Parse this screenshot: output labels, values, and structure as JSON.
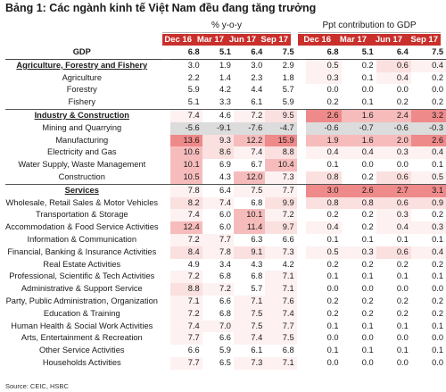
{
  "title": "Bảng 1: Các ngành kinh tế Việt Nam đều đang tăng trưởng",
  "groups": {
    "yoy": "% y-o-y",
    "ppt": "Ppt contribution to GDP"
  },
  "periods": [
    "Dec 16",
    "Mar 17",
    "Jun 17",
    "Sep 17"
  ],
  "colors": {
    "header_red": "#c9302c",
    "strong": "#ef8a8a",
    "medium": "#f6bcbc",
    "light": "#fbe0e0",
    "pale": "#fdf1f1",
    "neg": "#dcdcdc"
  },
  "rows": [
    {
      "label": "GDP",
      "type": "gdp",
      "yoy": [
        "6.8",
        "5.1",
        "6.4",
        "7.5"
      ],
      "ppt": [
        "6.8",
        "5.1",
        "6.4",
        "7.5"
      ]
    },
    {
      "label": "Agriculture, Forestry and Fishery",
      "type": "sector",
      "yoy": [
        "3.0",
        "1.9",
        "3.0",
        "2.9"
      ],
      "ppt": [
        "0.5",
        "0.2",
        "0.6",
        "0.4"
      ]
    },
    {
      "label": "Agriculture",
      "type": "item",
      "yoy": [
        "2.2",
        "1.4",
        "2.3",
        "1.8"
      ],
      "ppt": [
        "0.3",
        "0.1",
        "0.4",
        "0.2"
      ]
    },
    {
      "label": "Forestry",
      "type": "item",
      "yoy": [
        "5.9",
        "4.2",
        "4.4",
        "5.7"
      ],
      "ppt": [
        "0.0",
        "0.0",
        "0.0",
        "0.0"
      ]
    },
    {
      "label": "Fishery",
      "type": "item",
      "yoy": [
        "5.1",
        "3.3",
        "6.1",
        "5.9"
      ],
      "ppt": [
        "0.2",
        "0.1",
        "0.2",
        "0.2"
      ]
    },
    {
      "label": "Industry & Construction",
      "type": "sector",
      "yoy": [
        "7.4",
        "4.6",
        "7.2",
        "9.5"
      ],
      "ppt": [
        "2.6",
        "1.6",
        "2.4",
        "3.2"
      ]
    },
    {
      "label": "Mining and Quarrying",
      "type": "item",
      "yoy": [
        "-5.6",
        "-9.1",
        "-7.6",
        "-4.7"
      ],
      "ppt": [
        "-0.6",
        "-0.7",
        "-0.6",
        "-0.3"
      ]
    },
    {
      "label": "Manufacturing",
      "type": "item",
      "yoy": [
        "13.6",
        "9.3",
        "12.2",
        "15.9"
      ],
      "ppt": [
        "1.9",
        "1.6",
        "2.0",
        "2.6"
      ]
    },
    {
      "label": "Electricity and Gas",
      "type": "item",
      "yoy": [
        "10.6",
        "8.6",
        "7.4",
        "8.8"
      ],
      "ppt": [
        "0.4",
        "0.4",
        "0.3",
        "0.4"
      ]
    },
    {
      "label": "Water Supply, Waste Management",
      "type": "item",
      "yoy": [
        "10.1",
        "6.9",
        "6.7",
        "10.4"
      ],
      "ppt": [
        "0.1",
        "0.0",
        "0.0",
        "0.1"
      ]
    },
    {
      "label": "Construction",
      "type": "item",
      "yoy": [
        "10.5",
        "4.3",
        "12.0",
        "7.3"
      ],
      "ppt": [
        "0.8",
        "0.2",
        "0.6",
        "0.5"
      ]
    },
    {
      "label": "Services",
      "type": "sector",
      "yoy": [
        "7.8",
        "6.4",
        "7.5",
        "7.7"
      ],
      "ppt": [
        "3.0",
        "2.6",
        "2.7",
        "3.1"
      ]
    },
    {
      "label": "Wholesale, Retail Sales & Motor Vehicles",
      "type": "item",
      "yoy": [
        "8.2",
        "7.4",
        "6.8",
        "9.9"
      ],
      "ppt": [
        "0.8",
        "0.8",
        "0.6",
        "0.9"
      ]
    },
    {
      "label": "Transportation & Storage",
      "type": "item",
      "yoy": [
        "7.4",
        "6.0",
        "10.1",
        "7.2"
      ],
      "ppt": [
        "0.2",
        "0.2",
        "0.3",
        "0.2"
      ]
    },
    {
      "label": "Accommodation & Food Service Activities",
      "type": "item",
      "yoy": [
        "12.4",
        "6.0",
        "11.4",
        "9.7"
      ],
      "ppt": [
        "0.4",
        "0.2",
        "0.4",
        "0.3"
      ]
    },
    {
      "label": "Information & Communication",
      "type": "item",
      "yoy": [
        "7.2",
        "7.7",
        "6.3",
        "6.6"
      ],
      "ppt": [
        "0.1",
        "0.1",
        "0.1",
        "0.1"
      ]
    },
    {
      "label": "Financial, Banking & Insurance Activities",
      "type": "item",
      "yoy": [
        "8.4",
        "7.8",
        "9.1",
        "7.3"
      ],
      "ppt": [
        "0.5",
        "0.3",
        "0.6",
        "0.4"
      ]
    },
    {
      "label": "Real Estate Activities",
      "type": "item",
      "yoy": [
        "4.9",
        "3.4",
        "4.3",
        "4.2"
      ],
      "ppt": [
        "0.2",
        "0.2",
        "0.2",
        "0.2"
      ]
    },
    {
      "label": "Professional, Scientific & Tech Activities",
      "type": "item",
      "yoy": [
        "7.2",
        "6.8",
        "6.8",
        "7.1"
      ],
      "ppt": [
        "0.1",
        "0.1",
        "0.1",
        "0.1"
      ]
    },
    {
      "label": "Administrative & Support Service",
      "type": "item",
      "yoy": [
        "8.8",
        "7.2",
        "5.7",
        "7.1"
      ],
      "ppt": [
        "0.0",
        "0.0",
        "0.0",
        "0.0"
      ]
    },
    {
      "label": "Party, Public Administration, Organization",
      "type": "item",
      "yoy": [
        "7.1",
        "6.6",
        "7.1",
        "7.6"
      ],
      "ppt": [
        "0.2",
        "0.2",
        "0.2",
        "0.2"
      ]
    },
    {
      "label": "Education & Training",
      "type": "item",
      "yoy": [
        "7.2",
        "6.8",
        "7.5",
        "7.4"
      ],
      "ppt": [
        "0.2",
        "0.2",
        "0.2",
        "0.2"
      ]
    },
    {
      "label": "Human Health & Social Work Activities",
      "type": "item",
      "yoy": [
        "7.4",
        "7.0",
        "7.5",
        "7.7"
      ],
      "ppt": [
        "0.1",
        "0.1",
        "0.1",
        "0.1"
      ]
    },
    {
      "label": "Arts, Entertainment & Recreation",
      "type": "item",
      "yoy": [
        "7.7",
        "6.6",
        "7.4",
        "7.5"
      ],
      "ppt": [
        "0.0",
        "0.0",
        "0.0",
        "0.0"
      ]
    },
    {
      "label": "Other Service Activities",
      "type": "item",
      "yoy": [
        "6.6",
        "5.9",
        "6.1",
        "6.8"
      ],
      "ppt": [
        "0.1",
        "0.1",
        "0.1",
        "0.1"
      ]
    },
    {
      "label": "Households Activities",
      "type": "item",
      "yoy": [
        "7.7",
        "6.5",
        "7.3",
        "7.1"
      ],
      "ppt": [
        "0.0",
        "0.0",
        "0.0",
        "0.0"
      ]
    }
  ],
  "source": "Source: CEIC, HSBC"
}
